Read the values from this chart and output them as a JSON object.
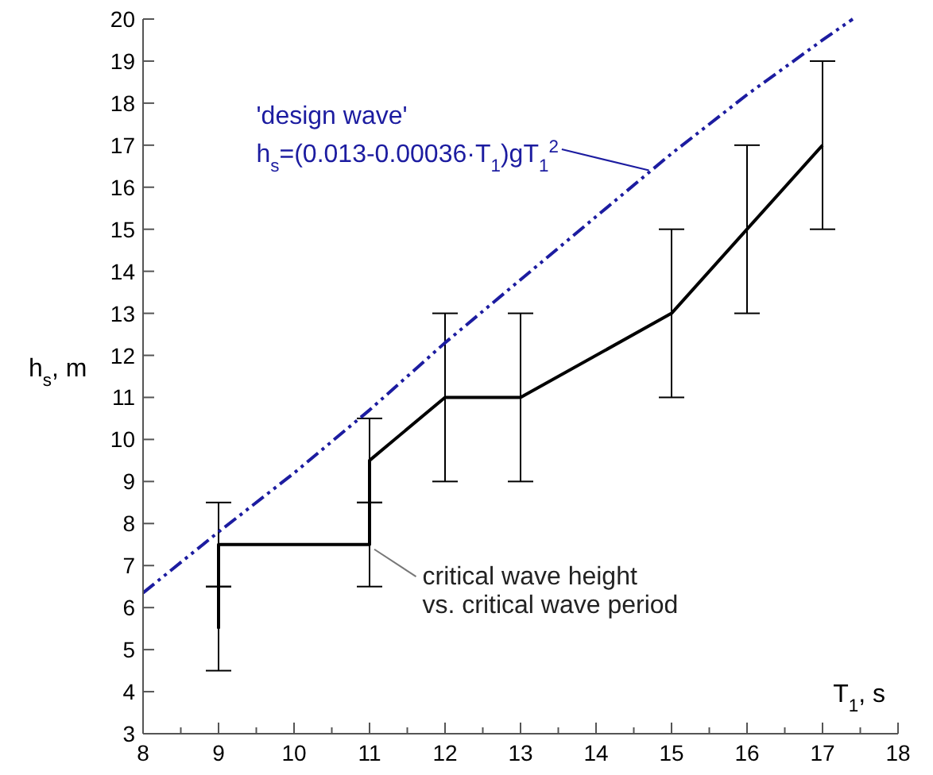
{
  "chart_data": {
    "type": "line",
    "xlabel": "T$_{1}$, s",
    "ylabel": "h$_{s}$, m",
    "xlim": [
      8,
      18
    ],
    "ylim": [
      3,
      20
    ],
    "xticks": [
      8,
      {
        "value": 8.5,
        "label": null
      },
      9,
      {
        "value": 9.5,
        "label": null
      },
      10,
      {
        "value": 10.5,
        "label": null
      },
      11,
      {
        "value": 11.5,
        "label": null
      },
      12,
      {
        "value": 12.5,
        "label": null
      },
      13,
      {
        "value": 13.5,
        "label": null
      },
      14,
      {
        "value": 14.5,
        "label": null
      },
      15,
      {
        "value": 15.5,
        "label": null
      },
      16,
      {
        "value": 16.5,
        "label": null
      },
      17,
      {
        "value": 17.5,
        "label": null
      },
      18
    ],
    "yticks": [
      3,
      4,
      5,
      6,
      7,
      8,
      9,
      10,
      11,
      12,
      13,
      14,
      15,
      16,
      17,
      18,
      19,
      20
    ],
    "grid": false,
    "series": [
      {
        "color": "#000000",
        "line_style": "solid",
        "x": [
          9,
          9,
          11,
          11,
          12,
          13,
          15,
          16,
          17
        ],
        "values": [
          5.5,
          7.5,
          7.5,
          9.5,
          11,
          11,
          13,
          15,
          17
        ],
        "errors": [
          1,
          1,
          1,
          1,
          2,
          2,
          2,
          2,
          2
        ]
      },
      {
        "color": "#1c1ca0",
        "line_style": "dashed",
        "x": [
          8,
          9,
          10,
          11,
          12,
          13,
          14,
          15,
          16,
          17,
          17.4
        ],
        "values": [
          6.35,
          7.8,
          9.2,
          10.7,
          12.3,
          13.8,
          15.3,
          16.8,
          18.2,
          19.5,
          20
        ]
      }
    ],
    "annotations": [
      "'design wave'",
      {
        "text": "h$_{s}$=(0.013-0.00036·T$_{1}$)gT$_{1}$$^{2}$",
        "x": 14.7,
        "y": 16.4
      },
      {
        "text": "critical wave height vs. critical wave period",
        "x": 11,
        "y": 7.5
      }
    ]
  }
}
